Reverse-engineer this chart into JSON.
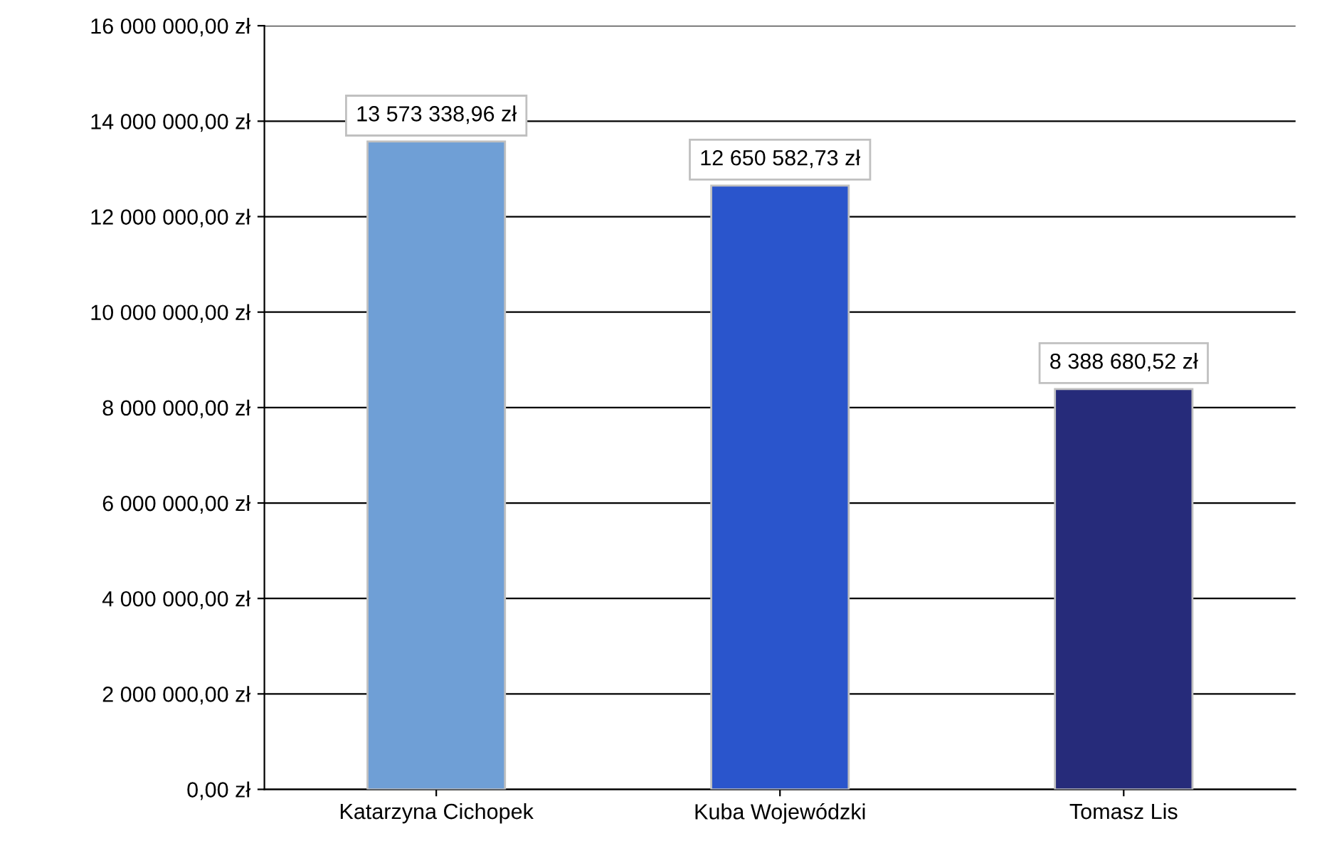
{
  "chart_data": {
    "type": "bar",
    "categories": [
      "Katarzyna Cichopek",
      "Kuba Wojewódzki",
      "Tomasz Lis"
    ],
    "values": [
      13573338.96,
      12650582.73,
      8388680.52
    ],
    "colors": [
      "#6f9fd6",
      "#2a55cc",
      "#262b7a"
    ],
    "value_labels": [
      "13 573 338,96 zł",
      "12 650 582,73 zł",
      "8 388 680,52 zł"
    ],
    "ylim": [
      0,
      16000000
    ],
    "yticks": [
      {
        "value": 0,
        "label": "0,00 zł"
      },
      {
        "value": 2000000,
        "label": "2 000 000,00 zł"
      },
      {
        "value": 4000000,
        "label": "4 000 000,00 zł"
      },
      {
        "value": 6000000,
        "label": "6 000 000,00 zł"
      },
      {
        "value": 8000000,
        "label": "8 000 000,00 zł"
      },
      {
        "value": 10000000,
        "label": "10 000 000,00 zł"
      },
      {
        "value": 12000000,
        "label": "12 000 000,00 zł"
      },
      {
        "value": 14000000,
        "label": "14 000 000,00 zł"
      },
      {
        "value": 16000000,
        "label": "16 000 000,00 zł"
      }
    ],
    "grid": "y"
  }
}
